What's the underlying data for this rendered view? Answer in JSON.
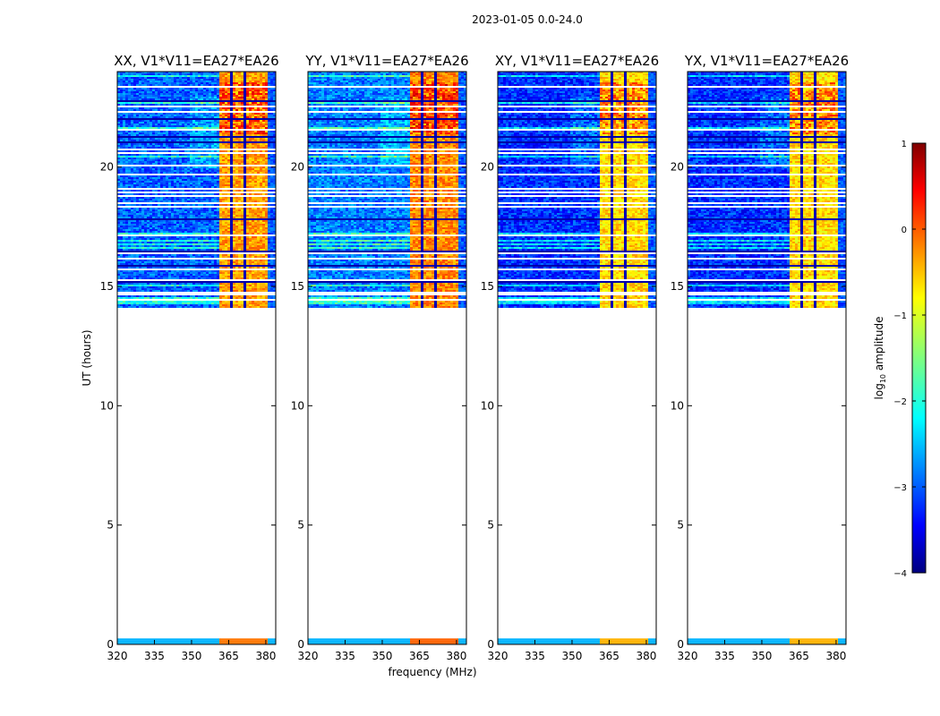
{
  "figure_title": "2023-01-05 0.0-24.0",
  "chart_data": {
    "type": "heatmap",
    "ylabel": "UT (hours)",
    "xlabel": "frequency (MHz)",
    "ylim": [
      0,
      24
    ],
    "xlim": [
      320,
      384
    ],
    "y_ticks": [
      0,
      5,
      10,
      15,
      20
    ],
    "x_ticks": [
      320,
      335,
      350,
      365,
      380
    ],
    "panels": [
      {
        "title": "XX, V1*V11=EA27*EA26",
        "high_band_level": 0.72,
        "low_band_level": 0.22
      },
      {
        "title": "YY, V1*V11=EA27*EA26",
        "high_band_level": 0.74,
        "low_band_level": 0.25
      },
      {
        "title": "XY, V1*V11=EA27*EA26",
        "high_band_level": 0.66,
        "low_band_level": 0.17
      },
      {
        "title": "YX, V1*V11=EA27*EA26",
        "high_band_level": 0.66,
        "low_band_level": 0.17
      }
    ],
    "data_coverage_hours": [
      [
        0.0,
        0.25
      ],
      [
        14.1,
        24.0
      ]
    ],
    "high_band_mhz": [
      361,
      380
    ],
    "colorbar": {
      "label": "log10 amplitude",
      "min": -4,
      "max": 1,
      "ticks": [
        1,
        0,
        -1,
        -2,
        -3,
        -4
      ],
      "tick_labels": [
        "1",
        "0",
        "−1",
        "−2",
        "−3",
        "−4"
      ],
      "colormap": "jet"
    }
  }
}
